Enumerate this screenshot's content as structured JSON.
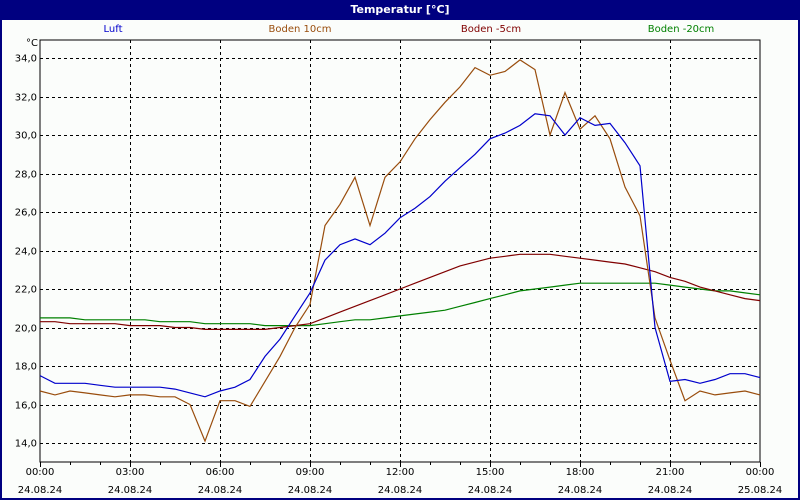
{
  "window": {
    "title": "Temperatur [°C]"
  },
  "colors": {
    "titlebar": "#000080",
    "background": "#fbfdfb",
    "grid": "#000000"
  },
  "chart_data": {
    "type": "line",
    "title": "Temperatur [°C]",
    "xlabel": "",
    "ylabel": "°C",
    "ylim": [
      13.0,
      35.0
    ],
    "yticks": [
      "34,0",
      "32,0",
      "30,0",
      "28,0",
      "26,0",
      "24,0",
      "22,0",
      "20,0",
      "18,0",
      "16,0",
      "14,0"
    ],
    "ytick_values": [
      34,
      32,
      30,
      28,
      26,
      24,
      22,
      20,
      18,
      16,
      14
    ],
    "xticks": [
      {
        "time": "00:00",
        "date": "24.08.24"
      },
      {
        "time": "03:00",
        "date": "24.08.24"
      },
      {
        "time": "06:00",
        "date": "24.08.24"
      },
      {
        "time": "09:00",
        "date": "24.08.24"
      },
      {
        "time": "12:00",
        "date": "24.08.24"
      },
      {
        "time": "15:00",
        "date": "24.08.24"
      },
      {
        "time": "18:00",
        "date": "24.08.24"
      },
      {
        "time": "21:00",
        "date": "24.08.24"
      },
      {
        "time": "00:00",
        "date": "25.08.24"
      }
    ],
    "grid": true,
    "legend_position": "top",
    "x_hours": [
      0,
      0.5,
      1,
      1.5,
      2,
      2.5,
      3,
      3.5,
      4,
      4.5,
      5,
      5.5,
      6,
      6.5,
      7,
      7.5,
      8,
      8.5,
      9,
      9.5,
      10,
      10.5,
      11,
      11.5,
      12,
      12.5,
      13,
      13.5,
      14,
      14.5,
      15,
      15.5,
      16,
      16.5,
      17,
      17.5,
      18,
      18.5,
      19,
      19.5,
      20,
      20.5,
      21,
      21.5,
      22,
      22.5,
      23,
      23.5,
      24
    ],
    "series": [
      {
        "name": "Luft",
        "color": "#0000cc",
        "values": [
          17.5,
          17.1,
          17.1,
          17.1,
          17.0,
          16.9,
          16.9,
          16.9,
          16.9,
          16.8,
          16.6,
          16.4,
          16.7,
          16.9,
          17.3,
          18.5,
          19.4,
          20.6,
          21.8,
          23.5,
          24.3,
          24.6,
          24.3,
          24.9,
          25.7,
          26.2,
          26.8,
          27.6,
          28.3,
          29.0,
          29.8,
          30.1,
          30.5,
          31.1,
          31.0,
          30.0,
          30.9,
          30.5,
          30.6,
          29.6,
          28.4,
          20.0,
          17.2,
          17.3,
          17.1,
          17.3,
          17.6,
          17.6,
          17.4
        ]
      },
      {
        "name": "Boden 10cm",
        "color": "#994d0d",
        "values": [
          16.7,
          16.5,
          16.7,
          16.6,
          16.5,
          16.4,
          16.5,
          16.5,
          16.4,
          16.4,
          16.0,
          14.1,
          16.2,
          16.2,
          15.9,
          17.2,
          18.5,
          20.0,
          21.2,
          25.3,
          26.4,
          27.8,
          25.3,
          27.8,
          28.6,
          29.8,
          30.8,
          31.7,
          32.5,
          33.5,
          33.1,
          33.3,
          33.9,
          33.4,
          30.0,
          32.2,
          30.3,
          31.0,
          29.8,
          27.3,
          25.8,
          20.5,
          18.3,
          16.2,
          16.7,
          16.5,
          16.6,
          16.7,
          16.5
        ]
      },
      {
        "name": "Boden -5cm",
        "color": "#800000",
        "values": [
          20.3,
          20.3,
          20.2,
          20.2,
          20.2,
          20.2,
          20.1,
          20.1,
          20.1,
          20.0,
          20.0,
          19.9,
          19.9,
          19.9,
          19.9,
          19.9,
          20.0,
          20.1,
          20.2,
          20.5,
          20.8,
          21.1,
          21.4,
          21.7,
          22.0,
          22.3,
          22.6,
          22.9,
          23.2,
          23.4,
          23.6,
          23.7,
          23.8,
          23.8,
          23.8,
          23.7,
          23.6,
          23.5,
          23.4,
          23.3,
          23.1,
          22.9,
          22.6,
          22.4,
          22.1,
          21.9,
          21.7,
          21.5,
          21.4
        ]
      },
      {
        "name": "Boden -20cm",
        "color": "#008000",
        "values": [
          20.5,
          20.5,
          20.5,
          20.4,
          20.4,
          20.4,
          20.4,
          20.4,
          20.3,
          20.3,
          20.3,
          20.2,
          20.2,
          20.2,
          20.2,
          20.1,
          20.1,
          20.1,
          20.1,
          20.2,
          20.3,
          20.4,
          20.4,
          20.5,
          20.6,
          20.7,
          20.8,
          20.9,
          21.1,
          21.3,
          21.5,
          21.7,
          21.9,
          22.0,
          22.1,
          22.2,
          22.3,
          22.3,
          22.3,
          22.3,
          22.3,
          22.3,
          22.2,
          22.1,
          22.0,
          21.9,
          21.9,
          21.8,
          21.7
        ]
      }
    ]
  }
}
